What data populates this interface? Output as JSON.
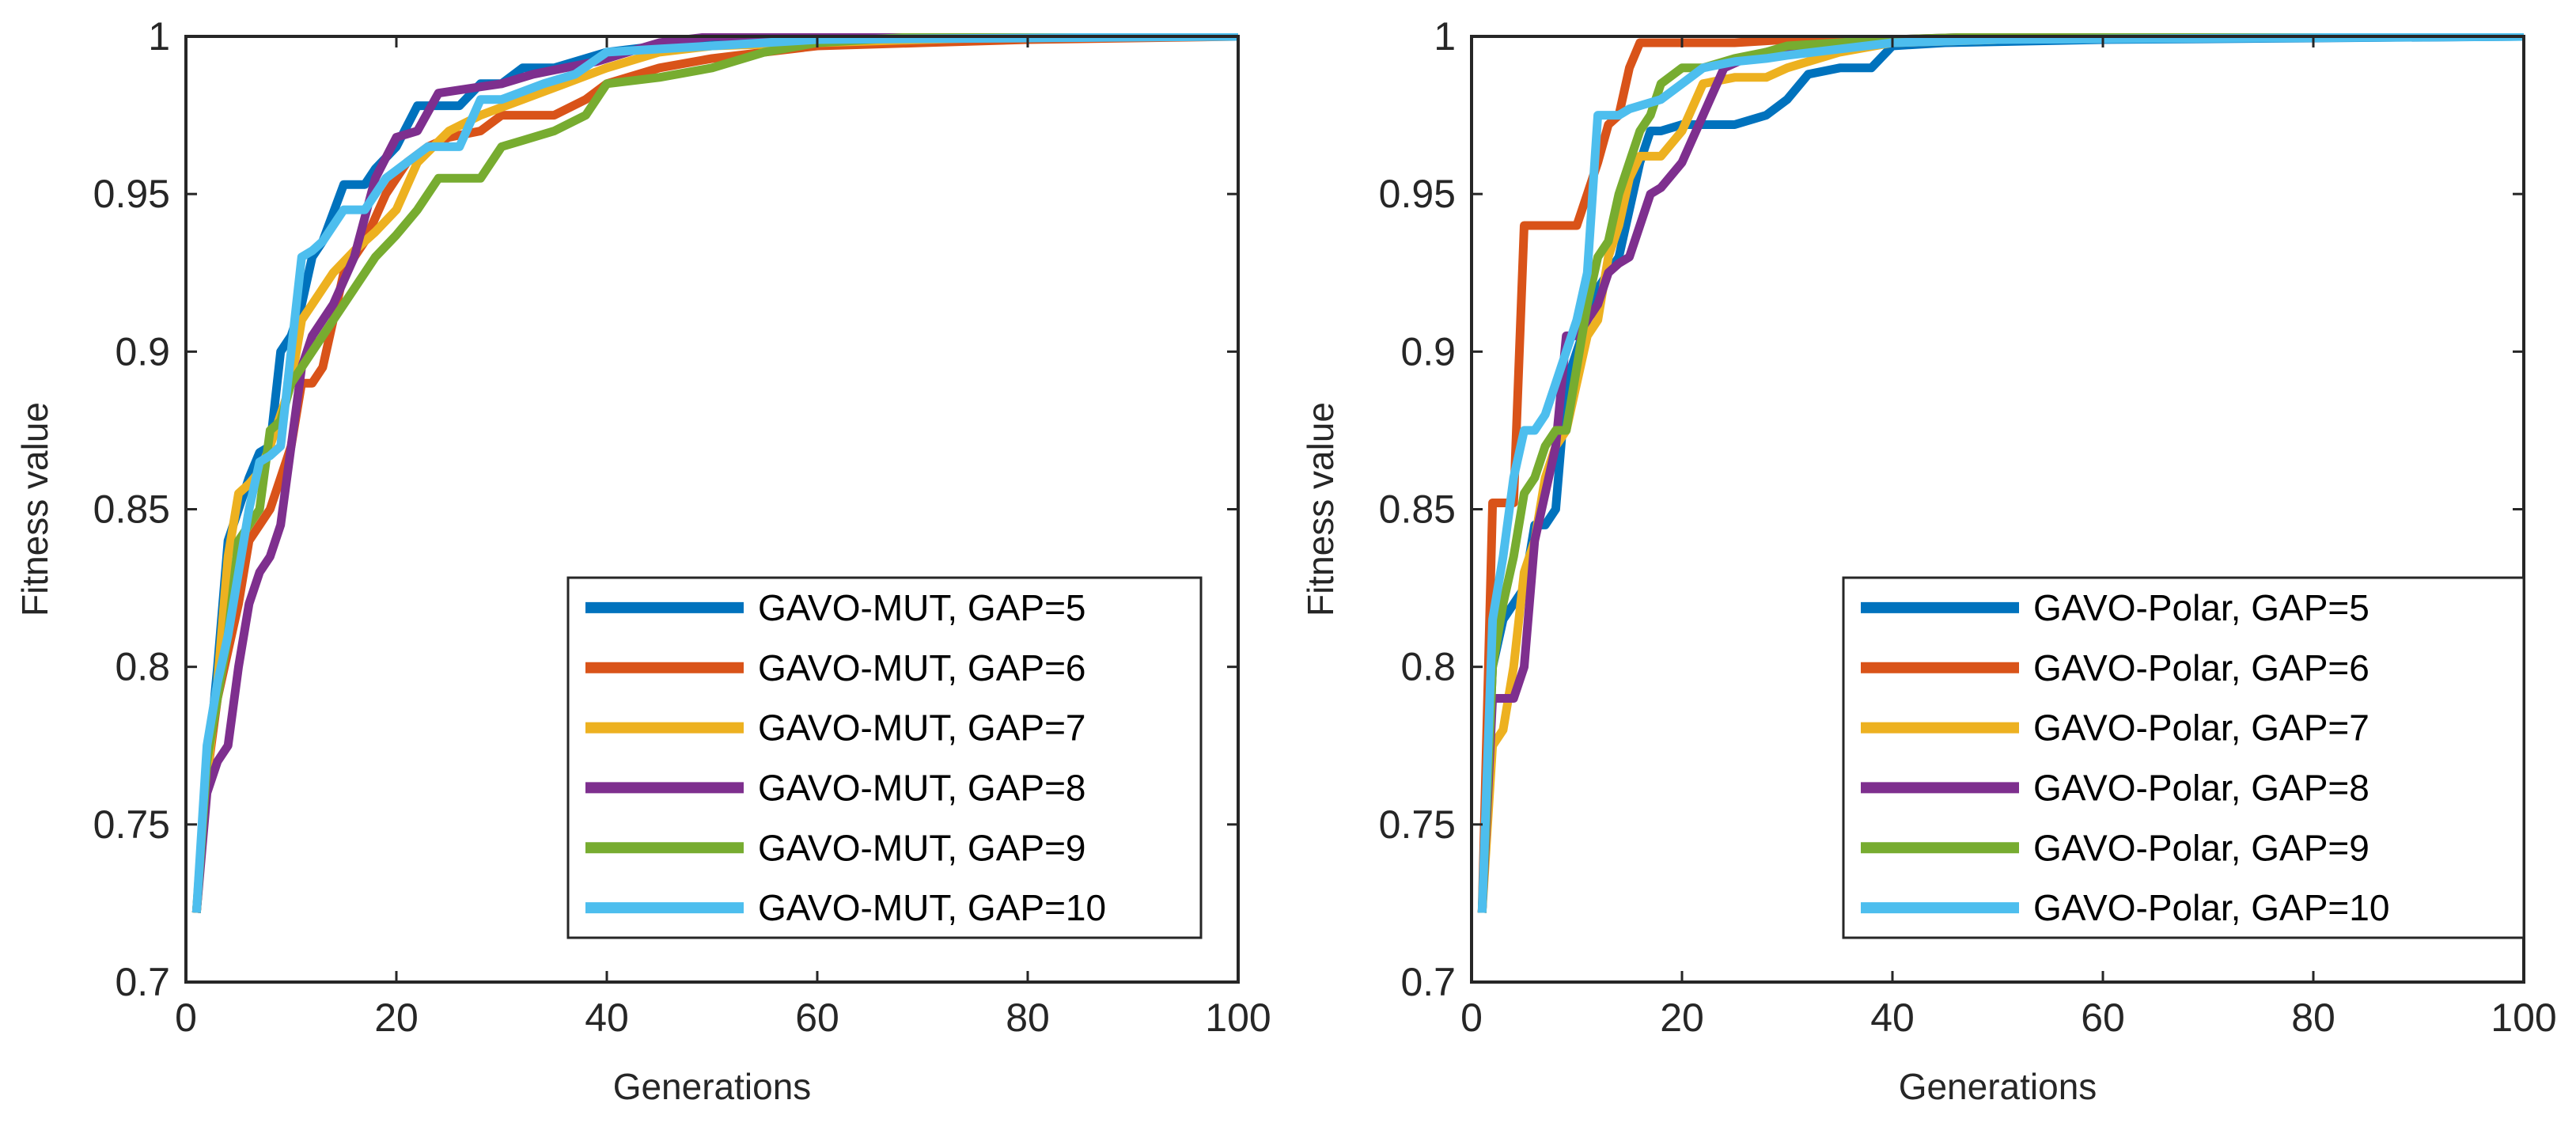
{
  "chart_data": [
    {
      "type": "line",
      "title": "",
      "xlabel": "Generations",
      "ylabel": "Fitness value",
      "xlim": [
        0,
        100
      ],
      "ylim": [
        0.7,
        1
      ],
      "xticks": [
        0,
        20,
        40,
        60,
        80,
        100
      ],
      "yticks": [
        0.7,
        0.75,
        0.8,
        0.85,
        0.9,
        0.95,
        1
      ],
      "xtick_labels": [
        "0",
        "20",
        "40",
        "60",
        "80",
        "100"
      ],
      "ytick_labels": [
        "0.7",
        "0.75",
        "0.8",
        "0.85",
        "0.9",
        "0.95",
        "1"
      ],
      "grid": false,
      "legend_position": "bottom-right",
      "series": [
        {
          "name": "GAVO-MUT, GAP=5",
          "color": "#0072BD",
          "x": [
            1,
            2,
            3,
            4,
            5,
            6,
            7,
            8,
            9,
            10,
            11,
            12,
            13,
            15,
            17,
            18,
            20,
            22,
            24,
            26,
            28,
            30,
            32,
            35,
            40,
            50,
            60,
            80,
            100
          ],
          "y": [
            0.722,
            0.765,
            0.8,
            0.84,
            0.85,
            0.86,
            0.868,
            0.87,
            0.9,
            0.905,
            0.915,
            0.93,
            0.935,
            0.953,
            0.953,
            0.958,
            0.965,
            0.978,
            0.978,
            0.978,
            0.985,
            0.985,
            0.99,
            0.99,
            0.995,
            0.999,
            1.0,
            1.0,
            1.0
          ]
        },
        {
          "name": "GAVO-MUT, GAP=6",
          "color": "#D95319",
          "x": [
            1,
            2,
            3,
            4,
            5,
            6,
            7,
            8,
            9,
            10,
            11,
            12,
            13,
            14,
            15,
            17,
            19,
            21,
            23,
            25,
            28,
            30,
            35,
            38,
            40,
            45,
            50,
            55,
            60,
            70,
            80,
            100
          ],
          "y": [
            0.722,
            0.765,
            0.79,
            0.805,
            0.82,
            0.84,
            0.845,
            0.85,
            0.86,
            0.87,
            0.89,
            0.89,
            0.895,
            0.91,
            0.925,
            0.935,
            0.95,
            0.96,
            0.965,
            0.968,
            0.97,
            0.975,
            0.975,
            0.98,
            0.985,
            0.99,
            0.993,
            0.995,
            0.997,
            0.998,
            0.999,
            1.0
          ]
        },
        {
          "name": "GAVO-MUT, GAP=7",
          "color": "#EDB120",
          "x": [
            1,
            2,
            3,
            4,
            5,
            6,
            7,
            8,
            9,
            10,
            11,
            12,
            14,
            16,
            18,
            20,
            22,
            25,
            28,
            32,
            36,
            40,
            45,
            50,
            60,
            80,
            100
          ],
          "y": [
            0.722,
            0.765,
            0.795,
            0.835,
            0.855,
            0.858,
            0.862,
            0.87,
            0.88,
            0.89,
            0.91,
            0.915,
            0.925,
            0.932,
            0.938,
            0.945,
            0.96,
            0.97,
            0.975,
            0.98,
            0.985,
            0.99,
            0.995,
            0.997,
            0.998,
            1.0,
            1.0
          ]
        },
        {
          "name": "GAVO-MUT, GAP=8",
          "color": "#7E2F8E",
          "x": [
            1,
            2,
            3,
            4,
            5,
            6,
            7,
            8,
            9,
            10,
            11,
            12,
            14,
            16,
            18,
            20,
            22,
            24,
            26,
            28,
            30,
            33,
            36,
            39,
            42,
            45,
            50,
            60,
            100
          ],
          "y": [
            0.722,
            0.76,
            0.77,
            0.775,
            0.8,
            0.82,
            0.83,
            0.835,
            0.845,
            0.87,
            0.895,
            0.905,
            0.915,
            0.93,
            0.955,
            0.968,
            0.97,
            0.982,
            0.983,
            0.984,
            0.985,
            0.988,
            0.99,
            0.992,
            0.995,
            0.998,
            1.0,
            1.0,
            1.0
          ]
        },
        {
          "name": "GAVO-MUT, GAP=9",
          "color": "#77AC30",
          "x": [
            1,
            2,
            3,
            4,
            5,
            6,
            7,
            8,
            9,
            10,
            12,
            14,
            16,
            18,
            20,
            22,
            24,
            26,
            28,
            30,
            32,
            35,
            38,
            40,
            45,
            50,
            55,
            60,
            70,
            100
          ],
          "y": [
            0.722,
            0.77,
            0.79,
            0.81,
            0.84,
            0.845,
            0.85,
            0.875,
            0.878,
            0.89,
            0.9,
            0.91,
            0.92,
            0.93,
            0.937,
            0.945,
            0.955,
            0.955,
            0.955,
            0.965,
            0.967,
            0.97,
            0.975,
            0.985,
            0.987,
            0.99,
            0.995,
            0.998,
            1.0,
            1.0
          ]
        },
        {
          "name": "GAVO-MUT, GAP=10",
          "color": "#4DBEEE",
          "x": [
            1,
            2,
            3,
            4,
            5,
            6,
            7,
            8,
            9,
            10,
            11,
            12,
            13,
            15,
            17,
            19,
            21,
            23,
            26,
            28,
            30,
            34,
            37,
            40,
            45,
            50,
            60,
            100
          ],
          "y": [
            0.722,
            0.775,
            0.795,
            0.81,
            0.83,
            0.85,
            0.865,
            0.867,
            0.87,
            0.9,
            0.93,
            0.932,
            0.935,
            0.945,
            0.945,
            0.955,
            0.96,
            0.965,
            0.965,
            0.98,
            0.98,
            0.985,
            0.988,
            0.995,
            0.996,
            0.997,
            0.999,
            1.0
          ]
        }
      ]
    },
    {
      "type": "line",
      "title": "",
      "xlabel": "Generations",
      "ylabel": "Fitness value",
      "xlim": [
        0,
        100
      ],
      "ylim": [
        0.7,
        1
      ],
      "xticks": [
        0,
        20,
        40,
        60,
        80,
        100
      ],
      "yticks": [
        0.7,
        0.75,
        0.8,
        0.85,
        0.9,
        0.95,
        1
      ],
      "xtick_labels": [
        "0",
        "20",
        "40",
        "60",
        "80",
        "100"
      ],
      "ytick_labels": [
        "0.7",
        "0.75",
        "0.8",
        "0.85",
        "0.9",
        "0.95",
        "1"
      ],
      "grid": false,
      "legend_position": "bottom-right",
      "series": [
        {
          "name": "GAVO-Polar, GAP=5",
          "color": "#0072BD",
          "x": [
            1,
            2,
            3,
            4,
            5,
            6,
            7,
            8,
            9,
            10,
            11,
            12,
            13,
            14,
            15,
            16,
            17,
            18,
            20,
            22,
            25,
            28,
            30,
            32,
            35,
            38,
            40,
            45,
            60,
            100
          ],
          "y": [
            0.722,
            0.8,
            0.815,
            0.82,
            0.825,
            0.845,
            0.845,
            0.85,
            0.89,
            0.9,
            0.91,
            0.92,
            0.925,
            0.93,
            0.945,
            0.96,
            0.97,
            0.97,
            0.972,
            0.972,
            0.972,
            0.975,
            0.98,
            0.988,
            0.99,
            0.99,
            0.997,
            0.998,
            0.999,
            1.0
          ]
        },
        {
          "name": "GAVO-Polar, GAP=6",
          "color": "#D95319",
          "x": [
            1,
            2,
            3,
            4,
            5,
            6,
            7,
            8,
            9,
            10,
            11,
            12,
            13,
            14,
            15,
            16,
            20,
            25,
            30,
            40,
            60,
            100
          ],
          "y": [
            0.722,
            0.852,
            0.852,
            0.852,
            0.94,
            0.94,
            0.94,
            0.94,
            0.94,
            0.94,
            0.95,
            0.96,
            0.972,
            0.975,
            0.99,
            0.998,
            0.998,
            0.998,
            0.999,
            0.999,
            1.0,
            1.0
          ]
        },
        {
          "name": "GAVO-Polar, GAP=7",
          "color": "#EDB120",
          "x": [
            1,
            2,
            3,
            4,
            5,
            6,
            7,
            8,
            9,
            10,
            11,
            12,
            13,
            14,
            15,
            16,
            18,
            20,
            22,
            25,
            28,
            30,
            35,
            40,
            50,
            60,
            100
          ],
          "y": [
            0.722,
            0.775,
            0.78,
            0.8,
            0.83,
            0.84,
            0.86,
            0.87,
            0.875,
            0.89,
            0.905,
            0.91,
            0.93,
            0.94,
            0.955,
            0.962,
            0.962,
            0.97,
            0.985,
            0.987,
            0.987,
            0.99,
            0.995,
            0.998,
            0.999,
            1.0,
            1.0
          ]
        },
        {
          "name": "GAVO-Polar, GAP=8",
          "color": "#7E2F8E",
          "x": [
            1,
            2,
            3,
            4,
            5,
            6,
            7,
            8,
            9,
            10,
            11,
            12,
            13,
            14,
            15,
            16,
            17,
            18,
            20,
            22,
            24,
            26,
            28,
            30,
            35,
            40,
            50,
            100
          ],
          "y": [
            0.722,
            0.79,
            0.79,
            0.79,
            0.8,
            0.84,
            0.855,
            0.87,
            0.905,
            0.905,
            0.91,
            0.915,
            0.925,
            0.928,
            0.93,
            0.94,
            0.95,
            0.952,
            0.96,
            0.975,
            0.99,
            0.993,
            0.995,
            0.996,
            0.997,
            0.999,
            1.0,
            1.0
          ]
        },
        {
          "name": "GAVO-Polar, GAP=9",
          "color": "#77AC30",
          "x": [
            1,
            2,
            3,
            4,
            5,
            6,
            7,
            8,
            9,
            10,
            11,
            12,
            13,
            14,
            15,
            16,
            17,
            18,
            20,
            22,
            25,
            28,
            30,
            35,
            40,
            50,
            100
          ],
          "y": [
            0.722,
            0.8,
            0.82,
            0.835,
            0.855,
            0.86,
            0.87,
            0.875,
            0.875,
            0.895,
            0.915,
            0.93,
            0.935,
            0.95,
            0.96,
            0.97,
            0.975,
            0.985,
            0.99,
            0.99,
            0.993,
            0.995,
            0.997,
            0.998,
            0.999,
            1.0,
            1.0
          ]
        },
        {
          "name": "GAVO-Polar, GAP=10",
          "color": "#4DBEEE",
          "x": [
            1,
            2,
            3,
            4,
            5,
            6,
            7,
            8,
            9,
            10,
            11,
            12,
            13,
            14,
            15,
            16,
            18,
            20,
            22,
            25,
            28,
            30,
            35,
            40,
            50,
            100
          ],
          "y": [
            0.722,
            0.815,
            0.835,
            0.86,
            0.875,
            0.875,
            0.88,
            0.89,
            0.9,
            0.91,
            0.925,
            0.975,
            0.975,
            0.975,
            0.977,
            0.978,
            0.98,
            0.985,
            0.99,
            0.992,
            0.993,
            0.994,
            0.996,
            0.998,
            0.999,
            1.0
          ]
        }
      ]
    }
  ]
}
